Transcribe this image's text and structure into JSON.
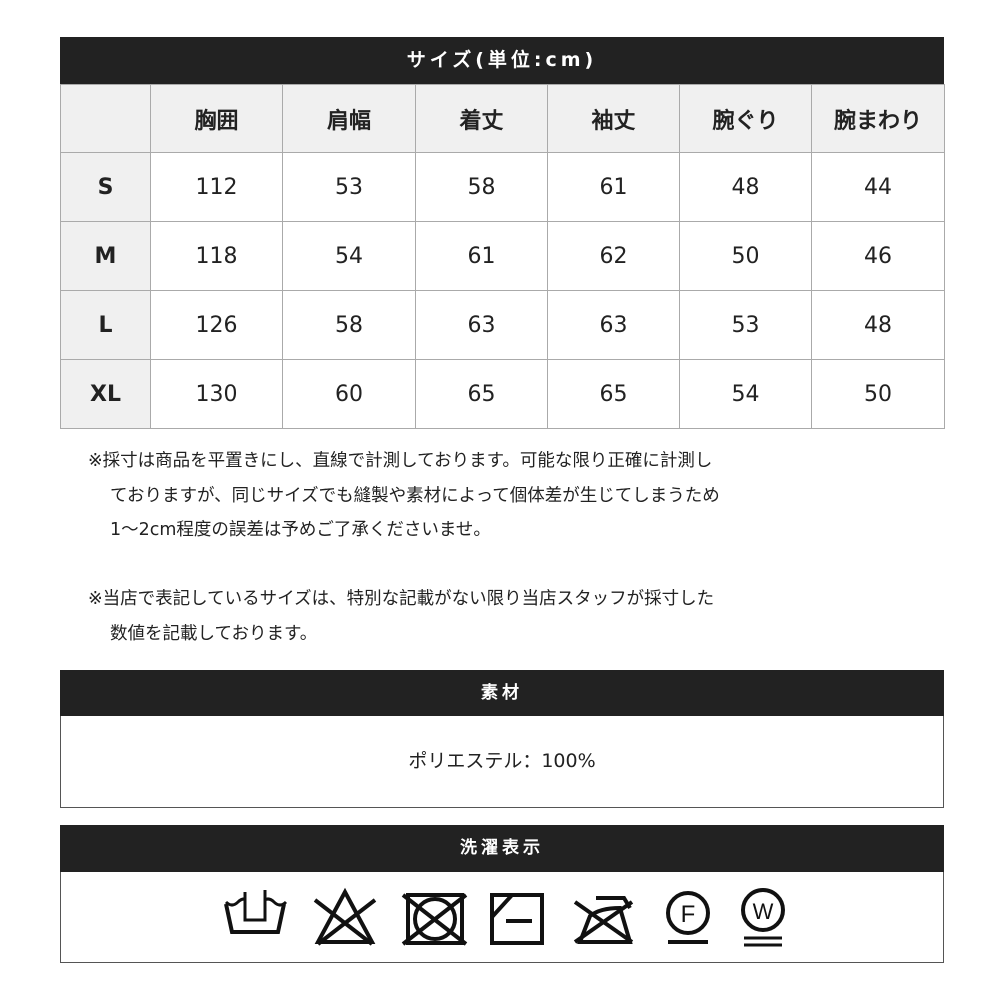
{
  "size_table": {
    "title": "サイズ(単位:cm)",
    "columns": [
      "",
      "胸囲",
      "肩幅",
      "着丈",
      "袖丈",
      "腕ぐり",
      "腕まわり"
    ],
    "rows": [
      {
        "size": "S",
        "values": [
          "112",
          "53",
          "58",
          "61",
          "48",
          "44"
        ]
      },
      {
        "size": "M",
        "values": [
          "118",
          "54",
          "61",
          "62",
          "50",
          "46"
        ]
      },
      {
        "size": "L",
        "values": [
          "126",
          "58",
          "63",
          "63",
          "53",
          "48"
        ]
      },
      {
        "size": "XL",
        "values": [
          "130",
          "60",
          "65",
          "65",
          "54",
          "50"
        ]
      }
    ]
  },
  "notes": [
    [
      "※採寸は商品を平置きにし、直線で計測しております。可能な限り正確に計測し",
      "ておりますが、同じサイズでも縫製や素材によって個体差が生じてしまうため",
      "1～2cm程度の誤差は予めご了承くださいませ。"
    ],
    [
      "※当店で表記しているサイズは、特別な記載がない限り当店スタッフが採寸した",
      "数値を記載しております。"
    ]
  ],
  "material": {
    "title": "素材",
    "value": "ポリエステル：100%"
  },
  "care": {
    "title": "洗濯表示",
    "icons": [
      "hand-wash-icon",
      "no-bleach-icon",
      "no-tumble-dry-icon",
      "line-dry-shade-icon",
      "no-iron-icon",
      "dry-clean-f-icon",
      "wet-clean-w-icon"
    ],
    "f_letter": "F",
    "w_letter": "W"
  }
}
